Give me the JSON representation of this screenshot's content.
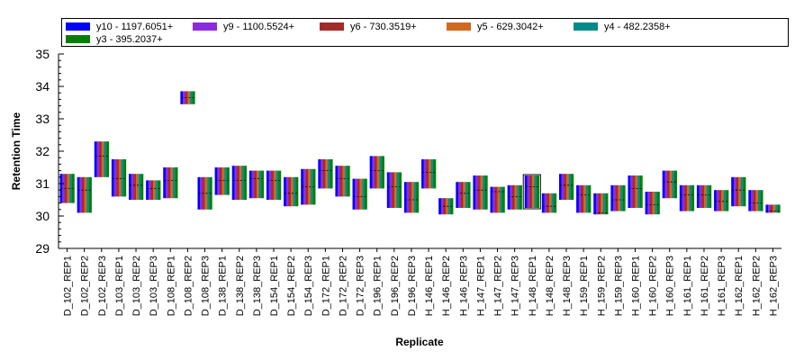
{
  "chart_data": {
    "type": "bar",
    "xlabel": "Replicate",
    "ylabel": "Retention Time",
    "ylim": [
      29,
      35
    ],
    "yticks": [
      29,
      30,
      31,
      32,
      33,
      34,
      35
    ],
    "legend_position": "top",
    "series": [
      {
        "name": "y10 - 1197.6051+",
        "color": "#0000ff"
      },
      {
        "name": "y9 - 1100.5524+",
        "color": "#8a2be2"
      },
      {
        "name": "y6 - 730.3519+",
        "color": "#a52a2a"
      },
      {
        "name": "y5 - 629.3042+",
        "color": "#d2691e"
      },
      {
        "name": "y4 - 482.2358+",
        "color": "#008b8b"
      },
      {
        "name": "y3 - 395.2037+",
        "color": "#008000"
      }
    ],
    "categories": [
      "D_102_REP1",
      "D_102_REP2",
      "D_102_REP3",
      "D_103_REP1",
      "D_103_REP2",
      "D_103_REP3",
      "D_108_REP1",
      "D_108_REP2",
      "D_108_REP3",
      "D_138_REP1",
      "D_138_REP2",
      "D_138_REP3",
      "D_154_REP1",
      "D_154_REP2",
      "D_154_REP3",
      "D_172_REP1",
      "D_172_REP2",
      "D_172_REP3",
      "D_196_REP1",
      "D_196_REP2",
      "D_196_REP3",
      "H_146_REP1",
      "H_146_REP2",
      "H_146_REP3",
      "H_147_REP1",
      "H_147_REP2",
      "H_147_REP3",
      "H_148_REP1",
      "H_148_REP2",
      "H_148_REP3",
      "H_159_REP1",
      "H_159_REP2",
      "H_159_REP3",
      "H_160_REP1",
      "H_160_REP2",
      "H_160_REP3",
      "H_161_REP1",
      "H_161_REP2",
      "H_161_REP3",
      "H_162_REP1",
      "H_162_REP2",
      "H_162_REP3"
    ],
    "ranges": [
      {
        "start": 30.4,
        "end": 31.3,
        "apex": 30.85
      },
      {
        "start": 30.1,
        "end": 31.2,
        "apex": 30.8
      },
      {
        "start": 31.2,
        "end": 32.3,
        "apex": 31.85
      },
      {
        "start": 30.6,
        "end": 31.75,
        "apex": 31.15
      },
      {
        "start": 30.5,
        "end": 31.3,
        "apex": 30.95
      },
      {
        "start": 30.5,
        "end": 31.1,
        "apex": 30.85
      },
      {
        "start": 30.55,
        "end": 31.5,
        "apex": 31.1
      },
      {
        "start": 33.45,
        "end": 33.85,
        "apex": 33.65
      },
      {
        "start": 30.2,
        "end": 31.2,
        "apex": 30.7
      },
      {
        "start": 30.65,
        "end": 31.5,
        "apex": 31.1
      },
      {
        "start": 30.5,
        "end": 31.55,
        "apex": 31.1
      },
      {
        "start": 30.55,
        "end": 31.4,
        "apex": 31.15
      },
      {
        "start": 30.5,
        "end": 31.4,
        "apex": 31.1
      },
      {
        "start": 30.3,
        "end": 31.2,
        "apex": 30.7
      },
      {
        "start": 30.35,
        "end": 31.45,
        "apex": 30.9
      },
      {
        "start": 30.85,
        "end": 31.75,
        "apex": 31.4
      },
      {
        "start": 30.6,
        "end": 31.55,
        "apex": 31.15
      },
      {
        "start": 30.2,
        "end": 31.15,
        "apex": 30.6
      },
      {
        "start": 30.85,
        "end": 31.85,
        "apex": 31.4
      },
      {
        "start": 30.25,
        "end": 31.35,
        "apex": 30.9
      },
      {
        "start": 30.1,
        "end": 31.05,
        "apex": 30.5
      },
      {
        "start": 30.85,
        "end": 31.75,
        "apex": 31.35
      },
      {
        "start": 30.05,
        "end": 30.55,
        "apex": 30.3
      },
      {
        "start": 30.25,
        "end": 31.05,
        "apex": 30.7
      },
      {
        "start": 30.2,
        "end": 31.25,
        "apex": 30.8
      },
      {
        "start": 30.1,
        "end": 30.9,
        "apex": 30.75
      },
      {
        "start": 30.2,
        "end": 30.95,
        "apex": 30.6
      },
      {
        "start": 30.25,
        "end": 31.25,
        "apex": 30.9
      },
      {
        "start": 30.1,
        "end": 30.7,
        "apex": 30.3
      },
      {
        "start": 30.5,
        "end": 31.3,
        "apex": 30.95
      },
      {
        "start": 30.1,
        "end": 30.95,
        "apex": 30.65
      },
      {
        "start": 30.05,
        "end": 30.7,
        "apex": 30.1
      },
      {
        "start": 30.15,
        "end": 30.95,
        "apex": 30.5
      },
      {
        "start": 30.25,
        "end": 31.25,
        "apex": 30.85
      },
      {
        "start": 30.05,
        "end": 30.75,
        "apex": 30.35
      },
      {
        "start": 30.55,
        "end": 31.4,
        "apex": 31.05
      },
      {
        "start": 30.15,
        "end": 30.95,
        "apex": 30.65
      },
      {
        "start": 30.25,
        "end": 30.95,
        "apex": 30.65
      },
      {
        "start": 30.15,
        "end": 30.8,
        "apex": 30.45
      },
      {
        "start": 30.3,
        "end": 31.2,
        "apex": 30.8
      },
      {
        "start": 30.15,
        "end": 30.8,
        "apex": 30.4
      },
      {
        "start": 30.1,
        "end": 30.35,
        "apex": 30.15
      }
    ]
  }
}
